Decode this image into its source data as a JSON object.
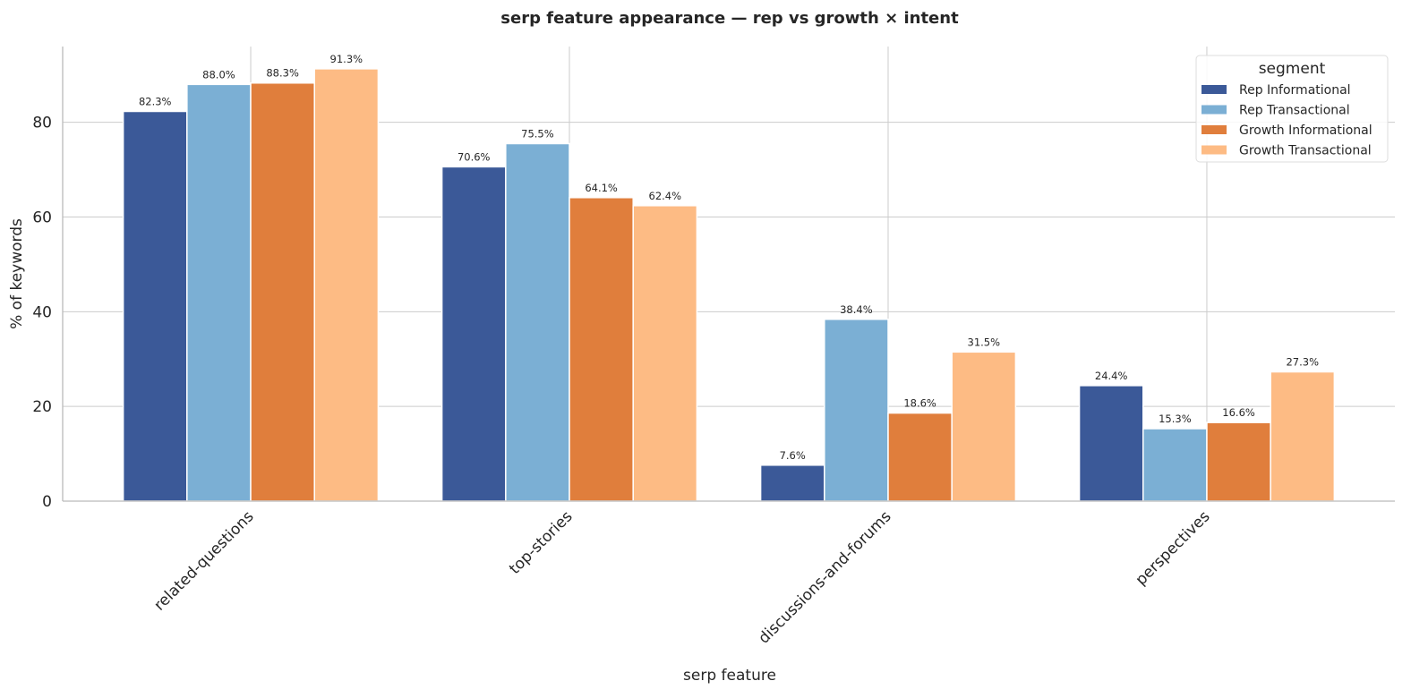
{
  "chart_data": {
    "type": "bar",
    "title": "serp feature appearance — rep vs growth × intent",
    "xlabel": "serp feature",
    "ylabel": "% of keywords",
    "ylim": [
      0,
      96
    ],
    "yticks": [
      0,
      20,
      40,
      60,
      80
    ],
    "grid": true,
    "categories": [
      "related-questions",
      "top-stories",
      "discussions-and-forums",
      "perspectives"
    ],
    "legend": {
      "title": "segment",
      "placement": "top-right"
    },
    "series": [
      {
        "name": "Rep Informational",
        "color": "#3b5998",
        "values": [
          82.3,
          70.6,
          7.6,
          24.4
        ],
        "labels": [
          "82.3%",
          "70.6%",
          "7.6%",
          "24.4%"
        ]
      },
      {
        "name": "Rep Transactional",
        "color": "#7bafd4",
        "values": [
          88.0,
          75.5,
          38.4,
          15.3
        ],
        "labels": [
          "88.0%",
          "75.5%",
          "38.4%",
          "15.3%"
        ]
      },
      {
        "name": "Growth Informational",
        "color": "#e07e3c",
        "values": [
          88.3,
          64.1,
          18.6,
          16.6
        ],
        "labels": [
          "88.3%",
          "64.1%",
          "18.6%",
          "16.6%"
        ]
      },
      {
        "name": "Growth Transactional",
        "color": "#fdbb84",
        "values": [
          91.3,
          62.4,
          31.5,
          27.3
        ],
        "labels": [
          "91.3%",
          "62.4%",
          "31.5%",
          "27.3%"
        ]
      }
    ]
  }
}
